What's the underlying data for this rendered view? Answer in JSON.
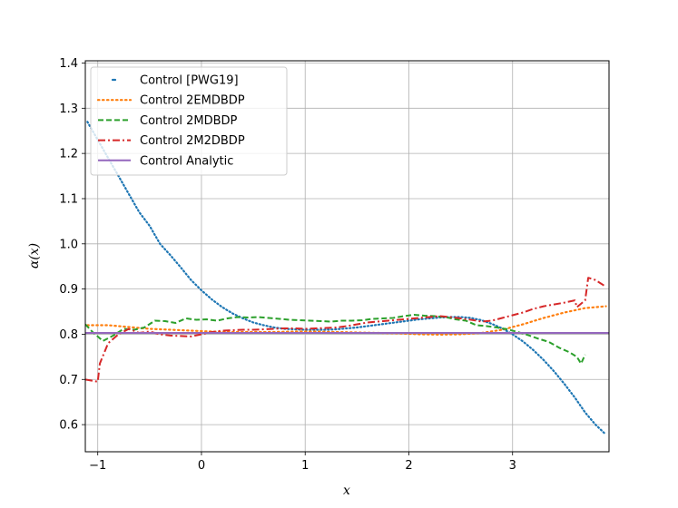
{
  "chart_data": {
    "type": "line",
    "xlabel": "x",
    "ylabel": "α(x)",
    "xlim": [
      -1.12,
      3.93
    ],
    "ylim": [
      0.54,
      1.405
    ],
    "xticks": [
      -1,
      0,
      1,
      2,
      3
    ],
    "yticks": [
      0.6,
      0.7,
      0.8,
      0.9,
      1.0,
      1.1,
      1.2,
      1.3,
      1.4
    ],
    "ytick_labels": [
      "0.6",
      "0.7",
      "0.8",
      "0.9",
      "1.0",
      "1.1",
      "1.2",
      "1.3",
      "1.4"
    ],
    "grid": true,
    "legend_position": "top-left",
    "series": [
      {
        "name": "Control [PWG19]",
        "color": "#1f77b4",
        "style": "dotted-sparse",
        "x": [
          -1.1,
          -1.0,
          -0.9,
          -0.8,
          -0.7,
          -0.6,
          -0.5,
          -0.4,
          -0.3,
          -0.2,
          -0.1,
          0.0,
          0.1,
          0.2,
          0.3,
          0.4,
          0.5,
          0.6,
          0.7,
          0.8,
          0.9,
          1.0,
          1.1,
          1.2,
          1.3,
          1.4,
          1.5,
          1.6,
          1.7,
          1.8,
          1.9,
          2.0,
          2.1,
          2.2,
          2.3,
          2.4,
          2.5,
          2.6,
          2.7,
          2.8,
          2.9,
          3.0,
          3.1,
          3.2,
          3.3,
          3.4,
          3.5,
          3.6,
          3.7,
          3.8,
          3.9
        ],
        "y": [
          1.27,
          1.23,
          1.19,
          1.15,
          1.11,
          1.07,
          1.04,
          1.0,
          0.975,
          0.948,
          0.92,
          0.897,
          0.877,
          0.86,
          0.846,
          0.835,
          0.826,
          0.82,
          0.815,
          0.812,
          0.811,
          0.81,
          0.81,
          0.81,
          0.811,
          0.813,
          0.815,
          0.818,
          0.821,
          0.824,
          0.827,
          0.83,
          0.833,
          0.835,
          0.837,
          0.838,
          0.838,
          0.836,
          0.831,
          0.823,
          0.813,
          0.8,
          0.784,
          0.765,
          0.743,
          0.718,
          0.69,
          0.66,
          0.627,
          0.6,
          0.578
        ]
      },
      {
        "name": "Control 2EMDBDP",
        "color": "#ff7f0e",
        "style": "dotted",
        "x": [
          -1.1,
          -0.9,
          -0.7,
          -0.5,
          -0.3,
          -0.1,
          0.1,
          0.3,
          0.5,
          0.7,
          0.9,
          1.1,
          1.3,
          1.5,
          1.7,
          1.9,
          2.1,
          2.3,
          2.5,
          2.7,
          2.9,
          3.1,
          3.3,
          3.5,
          3.7,
          3.9
        ],
        "y": [
          0.82,
          0.82,
          0.816,
          0.812,
          0.81,
          0.808,
          0.806,
          0.805,
          0.805,
          0.805,
          0.806,
          0.806,
          0.805,
          0.804,
          0.803,
          0.802,
          0.8,
          0.799,
          0.8,
          0.803,
          0.81,
          0.822,
          0.836,
          0.848,
          0.858,
          0.862
        ]
      },
      {
        "name": "Control 2MDBDP",
        "color": "#2ca02c",
        "style": "dashed",
        "x": [
          -1.12,
          -1.05,
          -0.95,
          -0.85,
          -0.75,
          -0.65,
          -0.55,
          -0.45,
          -0.35,
          -0.25,
          -0.15,
          -0.05,
          0.05,
          0.15,
          0.25,
          0.35,
          0.45,
          0.55,
          0.65,
          0.75,
          0.85,
          0.95,
          1.05,
          1.15,
          1.25,
          1.35,
          1.45,
          1.55,
          1.65,
          1.75,
          1.85,
          1.95,
          2.05,
          2.15,
          2.25,
          2.35,
          2.45,
          2.55,
          2.65,
          2.75,
          2.85,
          2.95,
          3.05,
          3.15,
          3.25,
          3.35,
          3.45,
          3.55,
          3.62,
          3.66,
          3.7
        ],
        "y": [
          0.822,
          0.805,
          0.785,
          0.797,
          0.812,
          0.81,
          0.815,
          0.83,
          0.829,
          0.825,
          0.835,
          0.832,
          0.833,
          0.83,
          0.835,
          0.838,
          0.837,
          0.838,
          0.836,
          0.834,
          0.832,
          0.831,
          0.83,
          0.829,
          0.828,
          0.83,
          0.83,
          0.831,
          0.834,
          0.835,
          0.836,
          0.84,
          0.843,
          0.841,
          0.84,
          0.838,
          0.833,
          0.83,
          0.82,
          0.818,
          0.815,
          0.811,
          0.805,
          0.798,
          0.79,
          0.783,
          0.77,
          0.76,
          0.75,
          0.735,
          0.755
        ]
      },
      {
        "name": "Control 2M2DBDP",
        "color": "#d62728",
        "style": "dashdot",
        "x": [
          -1.12,
          -1.0,
          -0.98,
          -0.9,
          -0.8,
          -0.7,
          -0.6,
          -0.5,
          -0.4,
          -0.3,
          -0.2,
          -0.1,
          0.0,
          0.1,
          0.2,
          0.3,
          0.4,
          0.5,
          0.6,
          0.7,
          0.8,
          0.9,
          1.0,
          1.1,
          1.2,
          1.3,
          1.4,
          1.5,
          1.6,
          1.7,
          1.8,
          1.9,
          2.0,
          2.1,
          2.2,
          2.3,
          2.4,
          2.5,
          2.6,
          2.7,
          2.8,
          2.9,
          3.0,
          3.1,
          3.2,
          3.3,
          3.4,
          3.5,
          3.6,
          3.62,
          3.7,
          3.73,
          3.8,
          3.9
        ],
        "y": [
          0.7,
          0.695,
          0.735,
          0.78,
          0.8,
          0.812,
          0.803,
          0.806,
          0.8,
          0.797,
          0.796,
          0.795,
          0.8,
          0.805,
          0.808,
          0.809,
          0.81,
          0.81,
          0.811,
          0.812,
          0.813,
          0.813,
          0.812,
          0.813,
          0.814,
          0.815,
          0.818,
          0.822,
          0.826,
          0.828,
          0.83,
          0.832,
          0.834,
          0.836,
          0.838,
          0.84,
          0.838,
          0.835,
          0.832,
          0.828,
          0.83,
          0.836,
          0.842,
          0.848,
          0.856,
          0.862,
          0.866,
          0.87,
          0.875,
          0.86,
          0.875,
          0.925,
          0.92,
          0.905
        ]
      },
      {
        "name": "Control Analytic",
        "color": "#9467bd",
        "style": "solid",
        "x": [
          -1.12,
          3.93
        ],
        "y": [
          0.803,
          0.803
        ]
      }
    ]
  }
}
